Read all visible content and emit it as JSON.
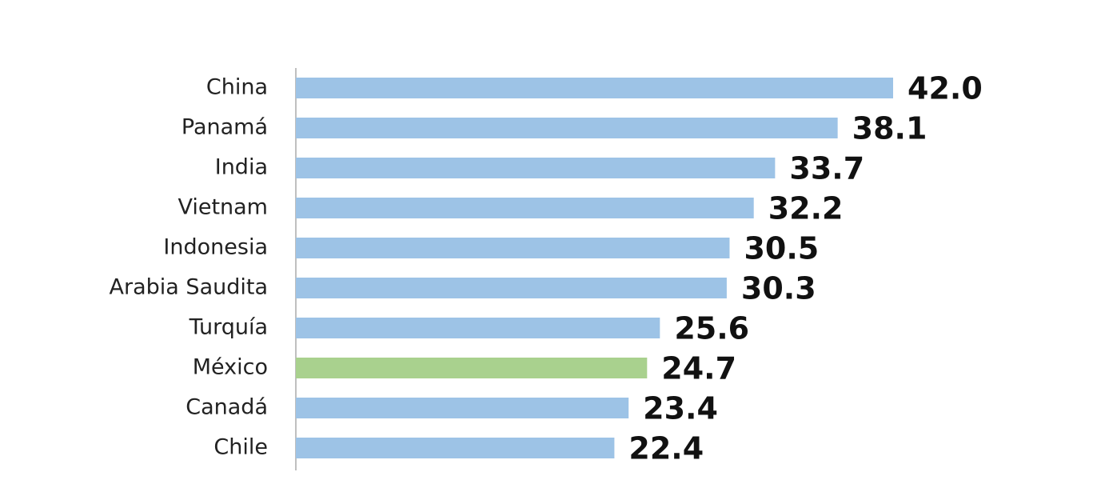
{
  "chart_data": {
    "type": "barh",
    "categories": [
      "China",
      "Panamá",
      "India",
      "Vietnam",
      "Indonesia",
      "Arabia Saudita",
      "Turquía",
      "México",
      "Canadá",
      "Chile"
    ],
    "values": [
      42.0,
      38.1,
      33.7,
      32.2,
      30.5,
      30.3,
      25.6,
      24.7,
      23.4,
      22.4
    ],
    "value_labels": [
      "42.0",
      "38.1",
      "33.7",
      "32.2",
      "30.5",
      "30.3",
      "25.6",
      "24.7",
      "23.4",
      "22.4"
    ],
    "colors": [
      "#9dc3e6",
      "#9dc3e6",
      "#9dc3e6",
      "#9dc3e6",
      "#9dc3e6",
      "#9dc3e6",
      "#9dc3e6",
      "#a9d18e",
      "#9dc3e6",
      "#9dc3e6"
    ]
  }
}
